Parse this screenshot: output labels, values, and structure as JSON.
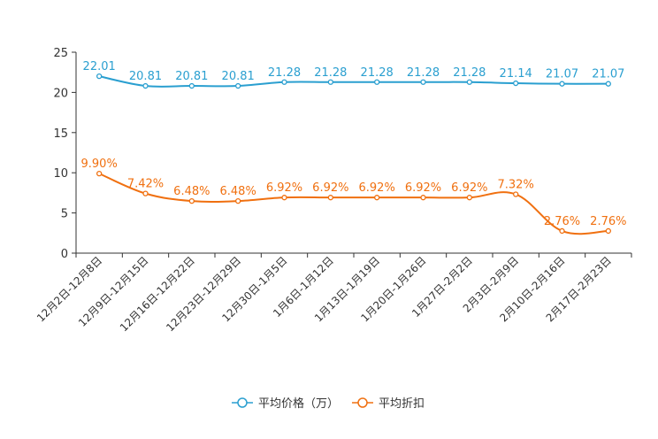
{
  "chart_data": {
    "type": "line",
    "categories": [
      "12月2日-12月8日",
      "12月9日-12月15日",
      "12月16日-12月22日",
      "12月23日-12月29日",
      "12月30日-1月5日",
      "1月6日-1月12日",
      "1月13日-1月19日",
      "1月20日-1月26日",
      "1月27日-2月2日",
      "2月3日-2月9日",
      "2月10日-2月16日",
      "2月17日-2月23日"
    ],
    "ylim": [
      0,
      25
    ],
    "yticks": [
      "0",
      "5",
      "10",
      "15",
      "20",
      "25"
    ],
    "series": [
      {
        "name": "平均价格（万）",
        "color": "#2a9fd0",
        "values": [
          22.01,
          20.81,
          20.81,
          20.81,
          21.28,
          21.28,
          21.28,
          21.28,
          21.28,
          21.14,
          21.07,
          21.07
        ],
        "labels": [
          "22.01",
          "20.81",
          "20.81",
          "20.81",
          "21.28",
          "21.28",
          "21.28",
          "21.28",
          "21.28",
          "21.14",
          "21.07",
          "21.07"
        ]
      },
      {
        "name": "平均折扣",
        "color": "#f07010",
        "values": [
          9.9,
          7.42,
          6.48,
          6.48,
          6.92,
          6.92,
          6.92,
          6.92,
          6.92,
          7.32,
          2.76,
          2.76
        ],
        "labels": [
          "9.90%",
          "7.42%",
          "6.48%",
          "6.48%",
          "6.92%",
          "6.92%",
          "6.92%",
          "6.92%",
          "6.92%",
          "7.32%",
          "2.76%",
          "2.76%"
        ]
      }
    ],
    "legend": "bottom-center"
  }
}
